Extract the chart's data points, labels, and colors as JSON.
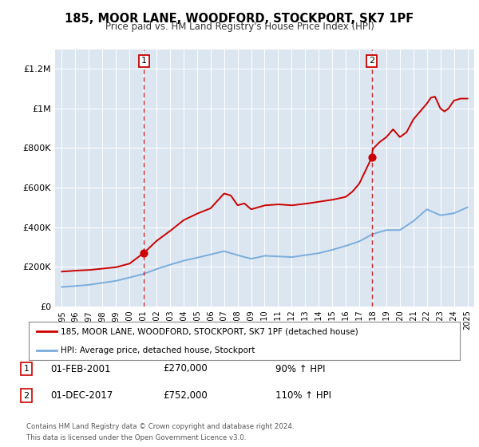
{
  "title": "185, MOOR LANE, WOODFORD, STOCKPORT, SK7 1PF",
  "subtitle": "Price paid vs. HM Land Registry's House Price Index (HPI)",
  "hpi_label": "HPI: Average price, detached house, Stockport",
  "property_label": "185, MOOR LANE, WOODFORD, STOCKPORT, SK7 1PF (detached house)",
  "footer1": "Contains HM Land Registry data © Crown copyright and database right 2024.",
  "footer2": "This data is licensed under the Open Government Licence v3.0.",
  "annotation1": {
    "num": "1",
    "date": "01-FEB-2001",
    "price": "£270,000",
    "pct": "90% ↑ HPI"
  },
  "annotation2": {
    "num": "2",
    "date": "01-DEC-2017",
    "price": "£752,000",
    "pct": "110% ↑ HPI"
  },
  "vline1_x": 2001.08,
  "vline2_x": 2017.92,
  "marker1_y": 270000,
  "marker2_y": 752000,
  "ylim": [
    0,
    1300000
  ],
  "xlim": [
    1994.5,
    2025.5
  ],
  "red_color": "#cc0000",
  "blue_color": "#7aaddc",
  "plot_bg": "#dce6f1",
  "yticks": [
    0,
    200000,
    400000,
    600000,
    800000,
    1000000,
    1200000
  ],
  "ytick_labels": [
    "£0",
    "£200K",
    "£400K",
    "£600K",
    "£800K",
    "£1M",
    "£1.2M"
  ],
  "hpi_years": [
    1995,
    1996,
    1997,
    1998,
    1999,
    2000,
    2001,
    2002,
    2003,
    2004,
    2005,
    2006,
    2007,
    2008,
    2009,
    2010,
    2011,
    2012,
    2013,
    2014,
    2015,
    2016,
    2017,
    2018,
    2019,
    2020,
    2021,
    2022,
    2023,
    2024,
    2025
  ],
  "hpi_vals": [
    97000,
    102000,
    108000,
    118000,
    128000,
    145000,
    162000,
    188000,
    210000,
    230000,
    245000,
    262000,
    278000,
    258000,
    240000,
    255000,
    252000,
    248000,
    258000,
    268000,
    285000,
    305000,
    328000,
    365000,
    385000,
    385000,
    430000,
    490000,
    460000,
    470000,
    500000
  ],
  "red_years": [
    1995,
    1996,
    1997,
    1998,
    1999,
    2000,
    2001.08,
    2002,
    2003,
    2004,
    2005,
    2006,
    2007,
    2007.5,
    2008,
    2008.5,
    2009,
    2010,
    2011,
    2012,
    2013,
    2014,
    2015,
    2016,
    2016.5,
    2017,
    2017.92,
    2018,
    2018.5,
    2019,
    2019.5,
    2020,
    2020.5,
    2021,
    2021.5,
    2022,
    2022.3,
    2022.6,
    2023,
    2023.3,
    2023.6,
    2024,
    2024.5,
    2025
  ],
  "red_vals": [
    175000,
    180000,
    183000,
    190000,
    197000,
    215000,
    270000,
    330000,
    380000,
    435000,
    468000,
    495000,
    570000,
    560000,
    510000,
    520000,
    490000,
    510000,
    515000,
    510000,
    518000,
    528000,
    538000,
    553000,
    580000,
    620000,
    752000,
    795000,
    830000,
    855000,
    895000,
    855000,
    880000,
    945000,
    985000,
    1025000,
    1055000,
    1060000,
    1000000,
    985000,
    1000000,
    1040000,
    1050000,
    1050000
  ]
}
